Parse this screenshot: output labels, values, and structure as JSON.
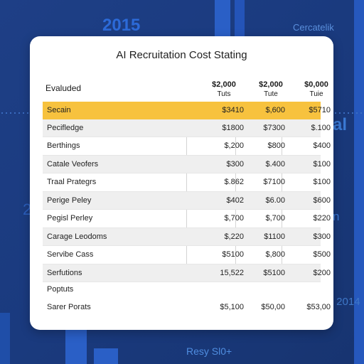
{
  "background": {
    "year_top": "2015",
    "label_top": "Cercatelik",
    "left_number": "2",
    "right_al": "al",
    "right_n": "n",
    "right_year": "r 2014",
    "bottom_label": "Resy Sl0+"
  },
  "card": {
    "title": "AI Recruitation Cost Stating",
    "header": {
      "label": "Evaluded",
      "columns": [
        {
          "top": "$2,000",
          "sub": "Tuts"
        },
        {
          "top": "$2,000",
          "sub": "Tute"
        },
        {
          "top": "$0,000",
          "sub": "Tuie"
        }
      ]
    },
    "rows": [
      {
        "name": "Secain",
        "values": [
          "$3410",
          "$,600",
          "$5710"
        ],
        "highlight": true
      },
      {
        "name": "Pecifledge",
        "values": [
          "$1800",
          "$7300",
          "$.100"
        ]
      },
      {
        "name": "Berthings",
        "values": [
          "$,200",
          "$800",
          "$400"
        ]
      },
      {
        "name": "Catale Veofers",
        "values": [
          "$300",
          "$.400",
          "$100"
        ]
      },
      {
        "name": "Traal Prategrs",
        "values": [
          "$.862",
          "$7100",
          "$100"
        ]
      },
      {
        "name": "Perige Peley",
        "values": [
          "$402",
          "$6.00",
          "$600"
        ]
      },
      {
        "name": "Pegisl Perley",
        "values": [
          "$,700",
          "$,700",
          "$220"
        ]
      },
      {
        "name": "Carage Leodoms",
        "values": [
          "$,220",
          "$1100",
          "$300"
        ]
      },
      {
        "name": "Servibe Cass",
        "values": [
          "$5100",
          "$,800",
          "$500"
        ]
      },
      {
        "name": "Serfutions",
        "values": [
          "15,522",
          "$5100",
          "$200"
        ]
      }
    ],
    "footer": {
      "label_a": "Poptuts",
      "label_b": "Sarer Porats",
      "values": [
        "$5,100",
        "$50,00",
        "$53,00"
      ]
    }
  }
}
